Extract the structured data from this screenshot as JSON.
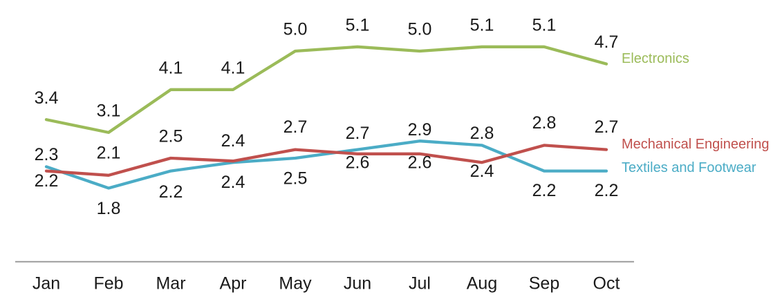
{
  "chart_data": {
    "type": "line",
    "title": "",
    "xlabel": "",
    "ylabel": "",
    "grid": false,
    "background": "#FFFFFF",
    "legend_position": "right-of-line-ends",
    "value_labels_shown": true,
    "value_format": "one-decimal",
    "ylim": [
      0,
      5.5
    ],
    "categories": [
      "Jan",
      "Feb",
      "Mar",
      "Apr",
      "May",
      "Jun",
      "Jul",
      "Aug",
      "Sep",
      "Oct"
    ],
    "series": [
      {
        "name": "Electronics",
        "color": "#9BBB59",
        "values": [
          3.4,
          3.1,
          4.1,
          4.1,
          5.0,
          5.1,
          5.0,
          5.1,
          5.1,
          4.7
        ],
        "label_dy": [
          -30,
          -30,
          -30,
          -30,
          -30,
          -30,
          -30,
          -30,
          -30,
          -30
        ]
      },
      {
        "name": "Textiles and Footwear",
        "color": "#4BACC6",
        "values": [
          2.3,
          1.8,
          2.2,
          2.4,
          2.5,
          2.7,
          2.9,
          2.8,
          2.2,
          2.2
        ],
        "label_dy": [
          -16,
          31,
          32,
          30,
          31,
          -22,
          -15,
          -16,
          30,
          30
        ]
      },
      {
        "name": "Mechanical Engineering",
        "color": "#C0504D",
        "values": [
          2.2,
          2.1,
          2.5,
          2.4,
          2.7,
          2.6,
          2.6,
          2.4,
          2.8,
          2.7
        ],
        "label_dy": [
          16,
          -31,
          -30,
          -30,
          -31,
          14,
          14,
          14,
          -31,
          -31
        ]
      }
    ],
    "axis": {
      "line_color": "#A6A6A6",
      "label_color": "#1A1A1A"
    },
    "data_label_color": "#1A1A1A"
  },
  "legend": {
    "electronics": "Electronics",
    "mechanical": "Mechanical Engineering",
    "textiles": "Textiles and Footwear"
  }
}
